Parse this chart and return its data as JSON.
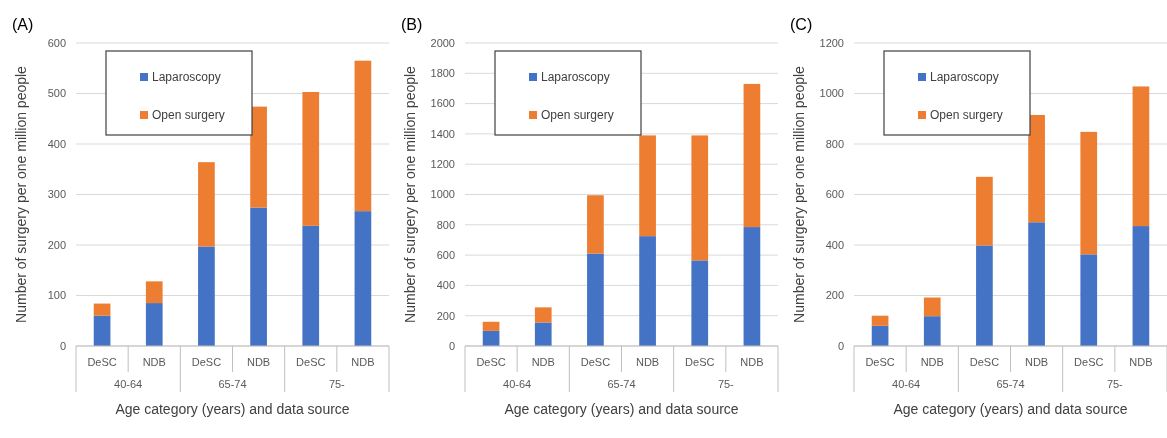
{
  "chart_data": [
    {
      "type": "bar",
      "title": "(A)",
      "stacked": true,
      "categories": [
        "DeSC",
        "NDB",
        "DeSC",
        "NDB",
        "DeSC",
        "NDB"
      ],
      "xlabel": "Age category (years) and data source",
      "ylabel": "Number of surgery per one million people",
      "annotations": [
        "40-64",
        "65-74",
        "75-"
      ],
      "ylim": [
        0,
        600
      ],
      "yticks": [
        0,
        100,
        200,
        300,
        400,
        500,
        600
      ],
      "grid": "y",
      "legend": "top left",
      "series": [
        {
          "name": "Laparoscopy",
          "color": "#4472c4",
          "values": [
            60,
            85,
            197,
            274,
            238,
            267
          ]
        },
        {
          "name": "Open surgery",
          "color": "#ed7d31",
          "values": [
            24,
            43,
            167,
            200,
            265,
            298
          ]
        }
      ]
    },
    {
      "type": "bar",
      "title": "(B)",
      "stacked": true,
      "categories": [
        "DeSC",
        "NDB",
        "DeSC",
        "NDB",
        "DeSC",
        "NDB"
      ],
      "xlabel": "Age category (years) and data source",
      "ylabel": "Number of surgery per one million people",
      "annotations": [
        "40-64",
        "65-74",
        "75-"
      ],
      "ylim": [
        0,
        2000
      ],
      "yticks": [
        0,
        200,
        400,
        600,
        800,
        1000,
        1200,
        1400,
        1600,
        1800,
        2000
      ],
      "grid": "y",
      "legend": "top left",
      "series": [
        {
          "name": "Laparoscopy",
          "color": "#4472c4",
          "values": [
            100,
            155,
            610,
            725,
            565,
            785
          ]
        },
        {
          "name": "Open surgery",
          "color": "#ed7d31",
          "values": [
            60,
            100,
            385,
            665,
            825,
            945
          ]
        }
      ]
    },
    {
      "type": "bar",
      "title": "(C)",
      "stacked": true,
      "categories": [
        "DeSC",
        "NDB",
        "DeSC",
        "NDB",
        "DeSC",
        "NDB"
      ],
      "xlabel": "Age category (years) and data source",
      "ylabel": "Number of surgery per one million people",
      "annotations": [
        "40-64",
        "65-74",
        "75-"
      ],
      "ylim": [
        0,
        1200
      ],
      "yticks": [
        0,
        200,
        400,
        600,
        800,
        1000,
        1200
      ],
      "grid": "y",
      "legend": "top left",
      "series": [
        {
          "name": "Laparoscopy",
          "color": "#4472c4",
          "values": [
            80,
            118,
            398,
            490,
            363,
            475
          ]
        },
        {
          "name": "Open surgery",
          "color": "#ed7d31",
          "values": [
            40,
            74,
            272,
            425,
            485,
            553
          ]
        }
      ]
    }
  ]
}
